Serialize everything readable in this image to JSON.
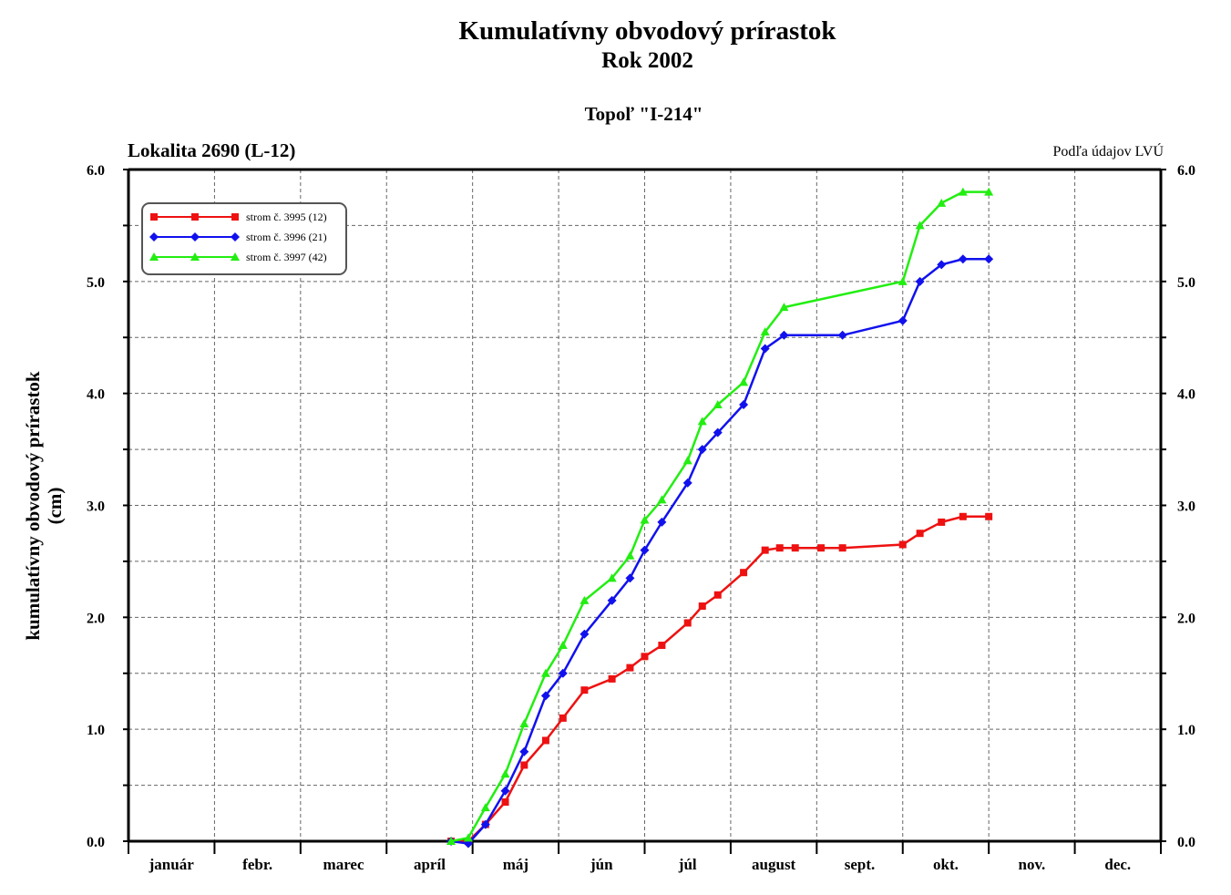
{
  "header": {
    "title": "Kumulatívny obvodový prírastok",
    "subtitle": "Rok 2002",
    "species": "Topoľ \"I-214\"",
    "location": "Lokalita 2690 (L-12)",
    "source": "Podľa údajov LVÚ"
  },
  "colors": {
    "series_red": "#ee1111",
    "series_blue": "#1111ee",
    "series_green": "#22ee11"
  },
  "chart_data": {
    "type": "line",
    "title": "Kumulatívny obvodový prírastok",
    "subtitle": "Rok 2002",
    "ylabel_line1": "kumulatívny obvodový prírastok",
    "ylabel_line2": "(cm)",
    "ylim": [
      0,
      6
    ],
    "xlim": [
      0,
      12
    ],
    "x_unit": "month (0 = 1. január, 12 = 31. december)",
    "y_ticks": [
      0,
      1,
      2,
      3,
      4,
      5,
      6
    ],
    "y_tick_labels": [
      "0.0",
      "1.0",
      "2.0",
      "3.0",
      "4.0",
      "5.0",
      "6.0"
    ],
    "categories": [
      "január",
      "febr.",
      "marec",
      "apríl",
      "máj",
      "jún",
      "júl",
      "august",
      "sept.",
      "okt.",
      "nov.",
      "dec."
    ],
    "grid": true,
    "legend_position": "top-left",
    "series": [
      {
        "name": "strom č. 3995 (12)",
        "color": "#ee1111",
        "marker": "square",
        "x": [
          3.75,
          3.95,
          4.15,
          4.38,
          4.6,
          4.85,
          5.05,
          5.3,
          5.62,
          5.83,
          6.0,
          6.2,
          6.5,
          6.67,
          6.85,
          7.15,
          7.4,
          7.57,
          7.75,
          8.05,
          8.3,
          9.0,
          9.2,
          9.45,
          9.7,
          10.0
        ],
        "y": [
          0.0,
          0.0,
          0.15,
          0.35,
          0.68,
          0.9,
          1.1,
          1.35,
          1.45,
          1.55,
          1.65,
          1.75,
          1.95,
          2.1,
          2.2,
          2.4,
          2.6,
          2.62,
          2.62,
          2.62,
          2.62,
          2.65,
          2.75,
          2.85,
          2.9,
          2.9
        ]
      },
      {
        "name": "strom č. 3996 (21)",
        "color": "#1111ee",
        "marker": "diamond",
        "x": [
          3.75,
          3.95,
          4.15,
          4.38,
          4.6,
          4.85,
          5.05,
          5.3,
          5.62,
          5.83,
          6.0,
          6.2,
          6.5,
          6.67,
          6.85,
          7.15,
          7.4,
          7.62,
          8.3,
          9.0,
          9.2,
          9.45,
          9.7,
          10.0
        ],
        "y": [
          0.0,
          -0.02,
          0.15,
          0.45,
          0.8,
          1.3,
          1.5,
          1.85,
          2.15,
          2.35,
          2.6,
          2.85,
          3.2,
          3.5,
          3.65,
          3.9,
          4.4,
          4.52,
          4.52,
          4.65,
          5.0,
          5.15,
          5.2,
          5.2
        ]
      },
      {
        "name": "strom č. 3997 (42)",
        "color": "#22ee11",
        "marker": "triangle",
        "x": [
          3.75,
          3.95,
          4.15,
          4.38,
          4.6,
          4.85,
          5.05,
          5.3,
          5.62,
          5.83,
          6.0,
          6.2,
          6.5,
          6.67,
          6.85,
          7.15,
          7.4,
          7.62,
          9.0,
          9.2,
          9.45,
          9.7,
          10.0
        ],
        "y": [
          0.0,
          0.03,
          0.3,
          0.6,
          1.05,
          1.5,
          1.75,
          2.15,
          2.35,
          2.55,
          2.87,
          3.05,
          3.4,
          3.75,
          3.9,
          4.1,
          4.55,
          4.77,
          5.0,
          5.5,
          5.7,
          5.8,
          5.8
        ]
      }
    ]
  }
}
